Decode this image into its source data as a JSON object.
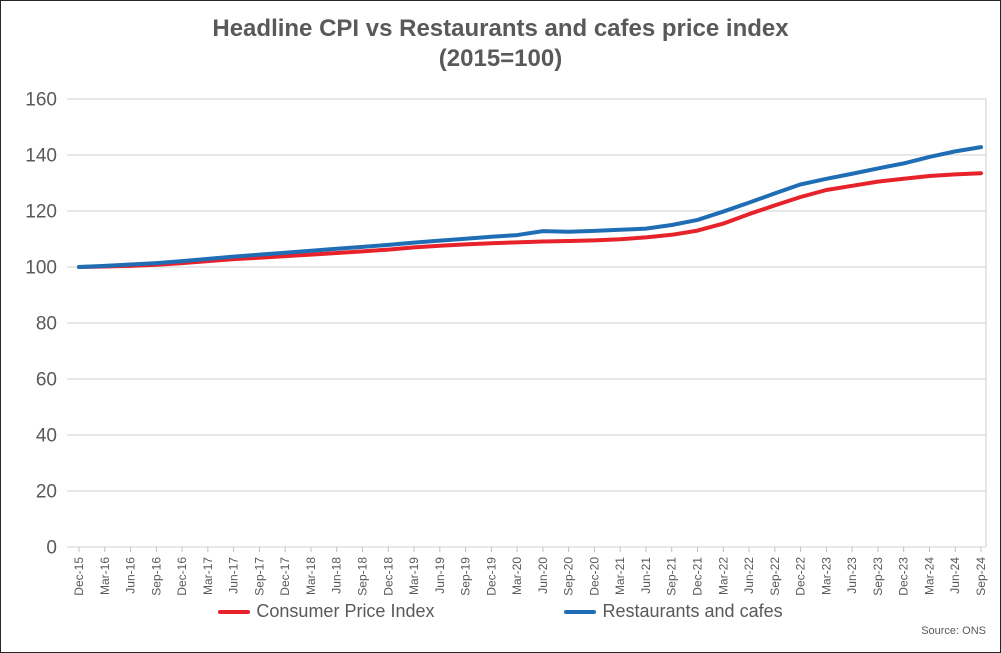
{
  "title": {
    "line1": "Headline CPI vs Restaurants and cafes price index",
    "line2": "(2015=100)"
  },
  "source": "Source: ONS",
  "colors": {
    "cpi": "#e8222a",
    "restaurants": "#1f6eb5",
    "grid": "#d9d9d9",
    "tick": "#bfbfbf",
    "text": "#595959",
    "border": "#262626"
  },
  "legend": [
    {
      "label": "Consumer Price Index",
      "color_key": "cpi"
    },
    {
      "label": "Restaurants and cafes",
      "color_key": "restaurants"
    }
  ],
  "chart_data": {
    "type": "line",
    "title": "Headline CPI vs Restaurants and cafes price index (2015=100)",
    "xlabel": "",
    "ylabel": "",
    "ylim": [
      0,
      160
    ],
    "ytick_step": 20,
    "grid": "horizontal",
    "legend_position": "bottom",
    "categories": [
      "Dec-15",
      "Mar-16",
      "Jun-16",
      "Sep-16",
      "Dec-16",
      "Mar-17",
      "Jun-17",
      "Sep-17",
      "Dec-17",
      "Mar-18",
      "Jun-18",
      "Sep-18",
      "Dec-18",
      "Mar-19",
      "Jun-19",
      "Sep-19",
      "Dec-19",
      "Mar-20",
      "Jun-20",
      "Sep-20",
      "Dec-20",
      "Mar-21",
      "Jun-21",
      "Sep-21",
      "Dec-21",
      "Mar-22",
      "Jun-22",
      "Sep-22",
      "Dec-22",
      "Mar-23",
      "Jun-23",
      "Sep-23",
      "Dec-23",
      "Mar-24",
      "Jun-24",
      "Sep-24"
    ],
    "series": [
      {
        "name": "Consumer Price Index",
        "color": "#e8222a",
        "values": [
          100.0,
          100.2,
          100.4,
          100.8,
          101.4,
          102.1,
          102.8,
          103.3,
          103.9,
          104.4,
          105.0,
          105.6,
          106.2,
          107.0,
          107.6,
          108.1,
          108.5,
          108.8,
          109.1,
          109.3,
          109.5,
          109.9,
          110.6,
          111.5,
          113.0,
          115.5,
          118.9,
          122.0,
          125.0,
          127.5,
          129.0,
          130.5,
          131.5,
          132.5,
          133.1,
          133.5
        ]
      },
      {
        "name": "Restaurants and cafes",
        "color": "#1f6eb5",
        "values": [
          100.0,
          100.4,
          100.9,
          101.4,
          102.1,
          102.9,
          103.7,
          104.4,
          105.1,
          105.8,
          106.5,
          107.2,
          107.9,
          108.7,
          109.4,
          110.1,
          110.8,
          111.4,
          112.8,
          112.6,
          112.9,
          113.3,
          113.7,
          115.0,
          116.8,
          119.8,
          123.0,
          126.3,
          129.5,
          131.5,
          133.3,
          135.2,
          137.0,
          139.3,
          141.3,
          142.8
        ]
      }
    ]
  }
}
